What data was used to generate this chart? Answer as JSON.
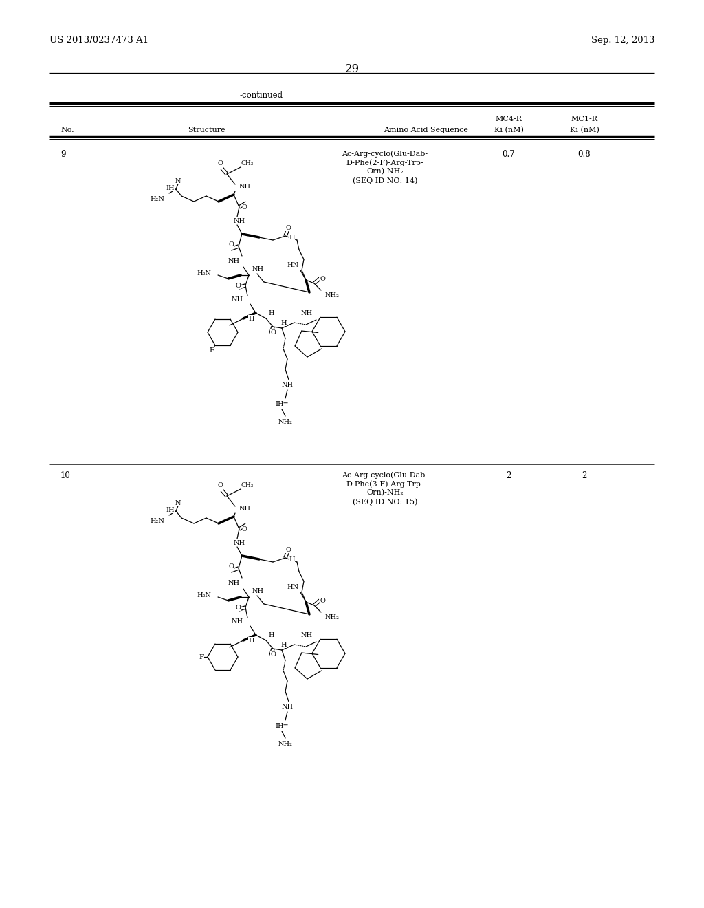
{
  "page_number": "29",
  "left_header": "US 2013/0237473 A1",
  "right_header": "Sep. 12, 2013",
  "continued_label": "-continued",
  "col1": "No.",
  "col2": "Structure",
  "col3": "Amino Acid Sequence",
  "col4_top": "MC4-R",
  "col4_bot": "Ki (nM)",
  "col5_top": "MC1-R",
  "col5_bot": "Ki (nM)",
  "row9_no": "9",
  "row9_seq": [
    "Ac-Arg-cyclo(Glu-Dab-",
    "D-Phe(2-F)-Arg-Trp-",
    "Orn)-NH₂",
    "(SEQ ID NO: 14)"
  ],
  "row9_mc4r": "0.7",
  "row9_mc1r": "0.8",
  "row10_no": "10",
  "row10_seq": [
    "Ac-Arg-cyclo(Glu-Dab-",
    "D-Phe(3-F)-Arg-Trp-",
    "Orn)-NH₂",
    "(SEQ ID NO: 15)"
  ],
  "row10_mc4r": "2",
  "row10_mc1r": "2",
  "bg": "#ffffff",
  "fg": "#000000"
}
